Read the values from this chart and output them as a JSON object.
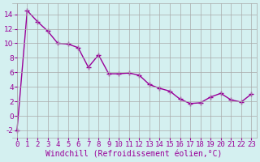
{
  "x": [
    0,
    1,
    2,
    3,
    4,
    5,
    6,
    7,
    8,
    9,
    10,
    11,
    12,
    13,
    14,
    15,
    16,
    17,
    18,
    19,
    20,
    21,
    22,
    23
  ],
  "y": [
    -2.0,
    14.5,
    13.0,
    11.7,
    10.0,
    9.9,
    9.4,
    6.7,
    8.4,
    5.8,
    5.8,
    5.9,
    5.6,
    4.3,
    3.8,
    3.4,
    2.3,
    1.7,
    1.8,
    2.6,
    3.1,
    2.2,
    1.9,
    3.0
  ],
  "line_color": "#990099",
  "marker": "+",
  "marker_size": 4,
  "linewidth": 1.0,
  "xlabel": "Windchill (Refroidissement éolien,°C)",
  "ylabel": "",
  "title": "",
  "xlim": [
    -0.5,
    23.5
  ],
  "ylim": [
    -3,
    15.5
  ],
  "yticks": [
    -2,
    0,
    2,
    4,
    6,
    8,
    10,
    12,
    14
  ],
  "xticks": [
    0,
    1,
    2,
    3,
    4,
    5,
    6,
    7,
    8,
    9,
    10,
    11,
    12,
    13,
    14,
    15,
    16,
    17,
    18,
    19,
    20,
    21,
    22,
    23
  ],
  "bg_color": "#d4f0f0",
  "grid_color": "#aaaaaa",
  "tick_label_fontsize": 6.5,
  "xlabel_fontsize": 7
}
